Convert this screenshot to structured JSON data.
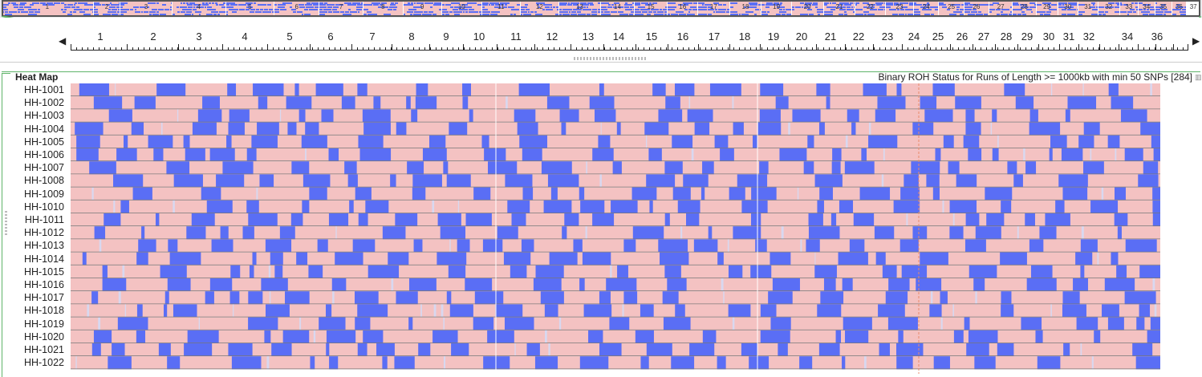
{
  "overview": {
    "chromosomes": [
      "1",
      "2",
      "3",
      "4",
      "5",
      "6",
      "7",
      "8",
      "9",
      "10",
      "11",
      "12",
      "13",
      "14",
      "15",
      "16",
      "17",
      "18",
      "19",
      "20",
      "21",
      "22",
      "23",
      "24",
      "25",
      "26",
      "27",
      "28",
      "29",
      "30",
      "31",
      "32",
      "33",
      "34",
      "35",
      "36",
      "37"
    ],
    "colors": {
      "blue": "#5a6ef5",
      "pink": "#f4c2c2",
      "bg": "#e9e9ec"
    }
  },
  "ruler": {
    "labels": [
      "1",
      "2",
      "3",
      "4",
      "5",
      "6",
      "7",
      "8",
      "9",
      "10",
      "11",
      "12",
      "13",
      "14",
      "15",
      "16",
      "17",
      "18",
      "19",
      "20",
      "21",
      "22",
      "23",
      "24",
      "25",
      "26",
      "27",
      "28",
      "29",
      "30",
      "31",
      "32",
      "34",
      "36"
    ],
    "left_arrow": "◀",
    "right_arrow": "▶"
  },
  "heatmap": {
    "title": "Heat Map",
    "description": "Binary ROH Status for Runs of Length >= 1000kb with min 50 SNPs [284]",
    "samples": [
      "HH-1001",
      "HH-1002",
      "HH-1003",
      "HH-1004",
      "HH-1005",
      "HH-1006",
      "HH-1007",
      "HH-1008",
      "HH-1009",
      "HH-1010",
      "HH-1011",
      "HH-1012",
      "HH-1013",
      "HH-1014",
      "HH-1015",
      "HH-1016",
      "HH-1017",
      "HH-1018",
      "HH-1019",
      "HH-1020",
      "HH-1021",
      "HH-1022"
    ],
    "colors": {
      "roh": "#5a6ef5",
      "no_roh": "#f4c2c2",
      "line": "#777777",
      "faint": "#d8d8f0"
    }
  }
}
